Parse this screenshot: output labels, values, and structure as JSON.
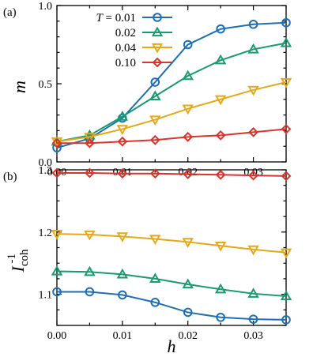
{
  "chart_data": [
    {
      "type": "line",
      "panel_label": "(a)",
      "xlabel": "h",
      "ylabel": "m",
      "xlim": [
        0,
        0.035
      ],
      "ylim": [
        0,
        1.0
      ],
      "x_ticks": [
        "0.00",
        "0.01",
        "0.02",
        "0.03"
      ],
      "y_ticks": [
        "0.0",
        "0.5",
        "1.0"
      ],
      "legend": {
        "placement": "top-left",
        "title_prefix": "T = ",
        "entries": [
          "0.01",
          "0.02",
          "0.04",
          "0.10"
        ]
      },
      "x": [
        0.0,
        0.005,
        0.01,
        0.015,
        0.02,
        0.025,
        0.03,
        0.035
      ],
      "series": [
        {
          "name": "0.01",
          "color": "#1f6fb4",
          "marker": "circle",
          "values": [
            0.09,
            0.15,
            0.28,
            0.51,
            0.75,
            0.85,
            0.88,
            0.89
          ]
        },
        {
          "name": "0.02",
          "color": "#1a9a6e",
          "marker": "triangle-up",
          "values": [
            0.13,
            0.17,
            0.29,
            0.42,
            0.55,
            0.65,
            0.72,
            0.76
          ]
        },
        {
          "name": "0.04",
          "color": "#e6a817",
          "marker": "triangle-down",
          "values": [
            0.13,
            0.16,
            0.21,
            0.27,
            0.34,
            0.4,
            0.46,
            0.51
          ]
        },
        {
          "name": "0.10",
          "color": "#d9352a",
          "marker": "diamond",
          "values": [
            0.12,
            0.12,
            0.13,
            0.14,
            0.16,
            0.17,
            0.19,
            0.21
          ]
        }
      ]
    },
    {
      "type": "line",
      "panel_label": "(b)",
      "xlabel": "h",
      "ylabel_main": "I",
      "ylabel_sub": "coh",
      "ylabel_sup": "-1",
      "xlim": [
        0,
        0.035
      ],
      "ylim": [
        1.05,
        1.3
      ],
      "x_ticks": [
        "0.00",
        "0.01",
        "0.02",
        "0.03"
      ],
      "y_ticks": [
        "1.1",
        "1.2",
        "1.3"
      ],
      "x": [
        0.0,
        0.005,
        0.01,
        0.015,
        0.02,
        0.025,
        0.03,
        0.035
      ],
      "series": [
        {
          "name": "0.01",
          "color": "#1f6fb4",
          "marker": "circle",
          "values": [
            1.104,
            1.104,
            1.099,
            1.087,
            1.071,
            1.063,
            1.06,
            1.059
          ]
        },
        {
          "name": "0.02",
          "color": "#1a9a6e",
          "marker": "triangle-up",
          "values": [
            1.137,
            1.136,
            1.132,
            1.125,
            1.116,
            1.108,
            1.101,
            1.097
          ]
        },
        {
          "name": "0.04",
          "color": "#e6a817",
          "marker": "triangle-down",
          "values": [
            1.197,
            1.196,
            1.193,
            1.189,
            1.184,
            1.178,
            1.172,
            1.167
          ]
        },
        {
          "name": "0.10",
          "color": "#d9352a",
          "marker": "diamond",
          "values": [
            1.295,
            1.295,
            1.294,
            1.294,
            1.293,
            1.292,
            1.291,
            1.29
          ]
        }
      ]
    }
  ]
}
